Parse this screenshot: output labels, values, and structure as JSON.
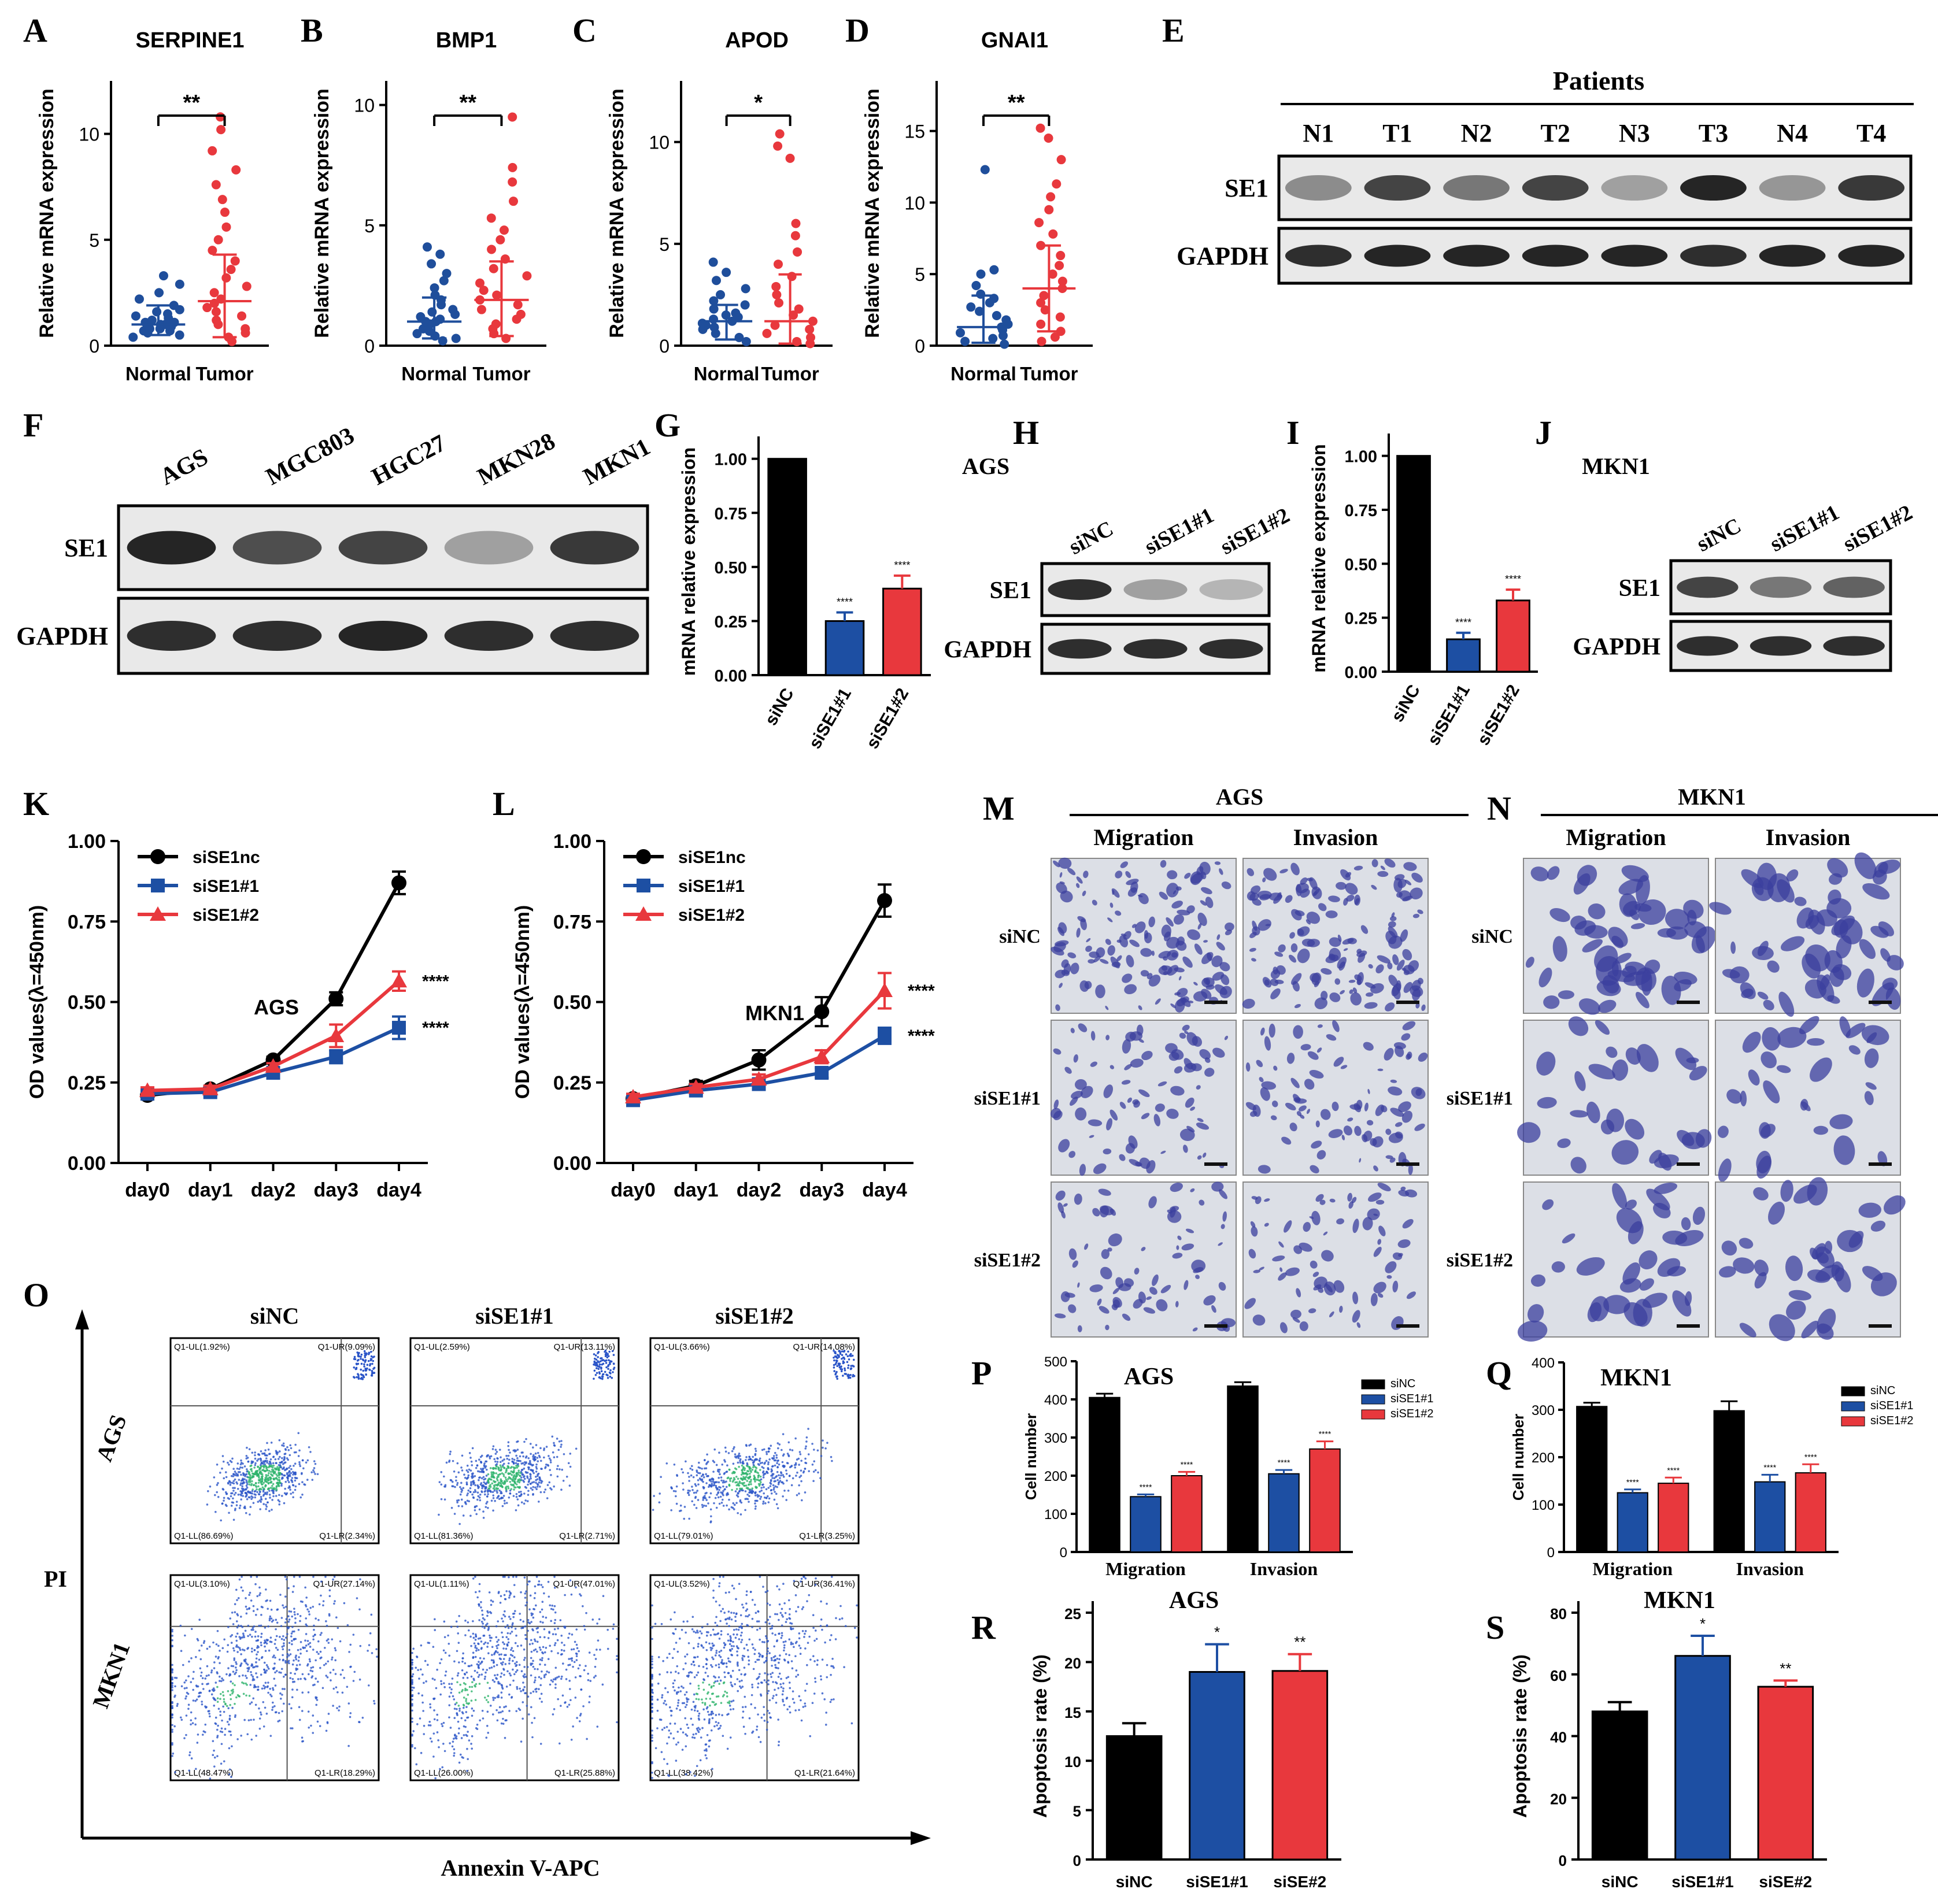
{
  "figure": {
    "panel_letters": [
      "A",
      "B",
      "C",
      "D",
      "E",
      "F",
      "G",
      "H",
      "I",
      "J",
      "K",
      "L",
      "M",
      "N",
      "O",
      "P",
      "Q",
      "R",
      "S"
    ]
  },
  "colors": {
    "normal": "#1f4e9b",
    "tumor": "#e8383d",
    "siNC": "#000000",
    "si1": "#1d4fa3",
    "si2": "#e8383d",
    "blot_bg": "#e9e9e9",
    "band": "#1a1a1a"
  },
  "chart_data": [
    {
      "id": "A",
      "type": "scatter",
      "title": "SERPINE1",
      "ylabel": "Relative mRNA expression",
      "categories": [
        "Normal",
        "Tumor"
      ],
      "ylim": [
        0,
        12.5
      ],
      "yticks": [
        0,
        5,
        10
      ],
      "sig": "**",
      "groups": [
        {
          "name": "Normal",
          "mean": 1.0,
          "sd_low": 0.5,
          "sd_high": 1.9,
          "points": [
            0.4,
            0.5,
            0.6,
            0.7,
            0.7,
            0.8,
            0.8,
            0.9,
            0.9,
            1.0,
            1.0,
            1.0,
            1.1,
            1.1,
            1.2,
            1.2,
            1.3,
            1.4,
            1.5,
            1.6,
            1.7,
            1.9,
            2.2,
            2.5,
            2.9,
            3.3
          ]
        },
        {
          "name": "Tumor",
          "mean": 2.1,
          "sd_low": 0.4,
          "sd_high": 4.3,
          "points": [
            0.2,
            0.4,
            0.6,
            0.8,
            1.0,
            1.2,
            1.4,
            1.6,
            1.8,
            2.0,
            2.2,
            2.5,
            2.8,
            3.2,
            3.6,
            4.0,
            4.5,
            5.0,
            5.6,
            6.3,
            6.9,
            7.6,
            8.3,
            9.2,
            10.2,
            10.8
          ]
        }
      ]
    },
    {
      "id": "B",
      "type": "scatter",
      "title": "BMP1",
      "ylabel": "Relative mRNA expression",
      "categories": [
        "Normal",
        "Tumor"
      ],
      "ylim": [
        0,
        11
      ],
      "yticks": [
        0,
        5,
        10
      ],
      "sig": "**",
      "groups": [
        {
          "name": "Normal",
          "mean": 1.0,
          "sd_low": 0.3,
          "sd_high": 2.0,
          "points": [
            0.2,
            0.3,
            0.4,
            0.5,
            0.6,
            0.7,
            0.8,
            0.9,
            1.0,
            1.0,
            1.1,
            1.2,
            1.3,
            1.4,
            1.5,
            1.7,
            1.9,
            2.1,
            2.4,
            2.7,
            3.0,
            3.4,
            3.8,
            4.1
          ]
        },
        {
          "name": "Tumor",
          "mean": 1.9,
          "sd_low": 0.4,
          "sd_high": 3.5,
          "points": [
            0.3,
            0.5,
            0.7,
            0.9,
            1.1,
            1.3,
            1.5,
            1.7,
            1.9,
            2.1,
            2.3,
            2.6,
            2.9,
            3.2,
            3.6,
            4.0,
            4.4,
            4.8,
            5.3,
            6.0,
            6.8,
            7.4,
            9.5
          ]
        }
      ]
    },
    {
      "id": "C",
      "type": "scatter",
      "title": "APOD",
      "ylabel": "Relative mRNA expression",
      "categories": [
        "Normal",
        "Tumor"
      ],
      "ylim": [
        0,
        13
      ],
      "yticks": [
        0,
        5,
        10
      ],
      "sig": "*",
      "groups": [
        {
          "name": "Normal",
          "mean": 1.2,
          "sd_low": 0.3,
          "sd_high": 2.0,
          "points": [
            0.2,
            0.4,
            0.6,
            0.8,
            0.9,
            1.0,
            1.1,
            1.2,
            1.3,
            1.4,
            1.5,
            1.6,
            1.8,
            2.0,
            2.2,
            2.5,
            2.8,
            3.2,
            3.6,
            4.1
          ]
        },
        {
          "name": "Tumor",
          "mean": 1.2,
          "sd_low": 0.1,
          "sd_high": 3.5,
          "points": [
            0.1,
            0.2,
            0.4,
            0.6,
            0.8,
            1.0,
            1.2,
            1.5,
            1.8,
            2.1,
            2.5,
            2.9,
            3.4,
            4.0,
            4.6,
            5.4,
            6.0,
            9.2,
            9.8,
            10.4
          ]
        }
      ]
    },
    {
      "id": "D",
      "type": "scatter",
      "title": "GNAI1",
      "ylabel": "Relative mRNA expression",
      "categories": [
        "Normal",
        "Tumor"
      ],
      "ylim": [
        0,
        18.5
      ],
      "yticks": [
        0,
        5,
        10,
        15
      ],
      "sig": "**",
      "groups": [
        {
          "name": "Normal",
          "mean": 1.3,
          "sd_low": 0.2,
          "sd_high": 3.5,
          "points": [
            0.1,
            0.3,
            0.5,
            0.7,
            0.9,
            1.1,
            1.3,
            1.5,
            1.8,
            2.1,
            2.4,
            2.7,
            3.0,
            3.3,
            3.6,
            4.2,
            5.0,
            5.3,
            12.3
          ]
        },
        {
          "name": "Tumor",
          "mean": 4.0,
          "sd_low": 1.0,
          "sd_high": 7.0,
          "points": [
            0.3,
            0.6,
            1.0,
            1.5,
            2.0,
            2.5,
            3.0,
            3.5,
            4.0,
            4.5,
            5.0,
            5.6,
            6.3,
            7.0,
            7.8,
            8.6,
            9.5,
            10.4,
            11.3,
            13.0,
            14.5,
            15.2
          ]
        }
      ]
    },
    {
      "id": "E",
      "type": "blot",
      "header": "Patients",
      "lanes": [
        "N1",
        "T1",
        "N2",
        "T2",
        "N3",
        "T3",
        "N4",
        "T4"
      ],
      "rows": [
        {
          "label": "SE1",
          "intensity": [
            0.45,
            0.8,
            0.55,
            0.8,
            0.35,
            0.95,
            0.4,
            0.85
          ]
        },
        {
          "label": "GAPDH",
          "intensity": [
            0.9,
            0.95,
            0.95,
            0.95,
            0.95,
            0.9,
            0.95,
            0.95
          ]
        }
      ]
    },
    {
      "id": "F",
      "type": "blot",
      "lanes": [
        "AGS",
        "MGC803",
        "HGC27",
        "MKN28",
        "MKN1"
      ],
      "rows": [
        {
          "label": "SE1",
          "intensity": [
            0.95,
            0.75,
            0.8,
            0.35,
            0.85
          ]
        },
        {
          "label": "GAPDH",
          "intensity": [
            0.9,
            0.9,
            0.95,
            0.9,
            0.9
          ]
        }
      ]
    },
    {
      "id": "G",
      "type": "bar",
      "ylabel": "mRNA relative expression",
      "categories": [
        "siNC",
        "siSE1#1",
        "siSE1#2"
      ],
      "values": [
        1.0,
        0.25,
        0.4
      ],
      "errors": [
        0,
        0.04,
        0.06
      ],
      "ylim": [
        0,
        1.05
      ],
      "yticks": [
        "0.00",
        "0.25",
        "0.50",
        "0.75",
        "1.00"
      ],
      "sig": [
        "",
        "****",
        "****"
      ]
    },
    {
      "id": "H",
      "type": "blot",
      "title": "AGS",
      "lanes": [
        "siNC",
        "siSE1#1",
        "siSE1#2"
      ],
      "rows": [
        {
          "label": "SE1",
          "intensity": [
            0.9,
            0.35,
            0.25
          ]
        },
        {
          "label": "GAPDH",
          "intensity": [
            0.9,
            0.9,
            0.9
          ]
        }
      ]
    },
    {
      "id": "I",
      "type": "bar",
      "ylabel": "mRNA relative expression",
      "categories": [
        "siNC",
        "siSE1#1",
        "siSE1#2"
      ],
      "values": [
        1.0,
        0.15,
        0.33
      ],
      "errors": [
        0,
        0.03,
        0.05
      ],
      "ylim": [
        0,
        1.05
      ],
      "yticks": [
        "0.00",
        "0.25",
        "0.50",
        "0.75",
        "1.00"
      ],
      "sig": [
        "",
        "****",
        "****"
      ]
    },
    {
      "id": "J",
      "type": "blot",
      "title": "MKN1",
      "lanes": [
        "siNC",
        "siSE1#1",
        "siSE1#2"
      ],
      "rows": [
        {
          "label": "SE1",
          "intensity": [
            0.8,
            0.55,
            0.65
          ]
        },
        {
          "label": "GAPDH",
          "intensity": [
            0.9,
            0.9,
            0.9
          ]
        }
      ]
    },
    {
      "id": "K",
      "type": "line",
      "ylabel": "OD values(λ=450nm)",
      "annotation": "AGS",
      "x": [
        "day0",
        "day1",
        "day2",
        "day3",
        "day4"
      ],
      "ylim": [
        0,
        1.0
      ],
      "yticks": [
        "0.00",
        "0.25",
        "0.50",
        "0.75",
        "1.00"
      ],
      "series": [
        {
          "name": "siSE1nc",
          "values": [
            0.21,
            0.23,
            0.32,
            0.51,
            0.87
          ],
          "errors": [
            0.01,
            0.01,
            0.01,
            0.02,
            0.035
          ],
          "sig": ""
        },
        {
          "name": "siSE1#1",
          "values": [
            0.215,
            0.22,
            0.28,
            0.33,
            0.42
          ],
          "errors": [
            0.01,
            0.01,
            0.01,
            0.02,
            0.035
          ],
          "sig": "****"
        },
        {
          "name": "siSE1#2",
          "values": [
            0.225,
            0.23,
            0.3,
            0.395,
            0.565
          ],
          "errors": [
            0.01,
            0.01,
            0.01,
            0.035,
            0.03
          ],
          "sig": "****"
        }
      ]
    },
    {
      "id": "L",
      "type": "line",
      "ylabel": "OD values(λ=450nm)",
      "annotation": "MKN1",
      "x": [
        "day0",
        "day1",
        "day2",
        "day3",
        "day4"
      ],
      "ylim": [
        0,
        1.0
      ],
      "yticks": [
        "0.00",
        "0.25",
        "0.50",
        "0.75",
        "1.00"
      ],
      "series": [
        {
          "name": "siSE1nc",
          "values": [
            0.2,
            0.24,
            0.32,
            0.47,
            0.815
          ],
          "errors": [
            0.01,
            0.015,
            0.03,
            0.045,
            0.05
          ],
          "sig": ""
        },
        {
          "name": "siSE1#1",
          "values": [
            0.195,
            0.225,
            0.245,
            0.28,
            0.395
          ],
          "errors": [
            0.01,
            0.01,
            0.01,
            0.015,
            0.025
          ],
          "sig": "****"
        },
        {
          "name": "siSE1#2",
          "values": [
            0.205,
            0.235,
            0.26,
            0.33,
            0.535
          ],
          "errors": [
            0.01,
            0.01,
            0.015,
            0.02,
            0.055
          ],
          "sig": "****"
        }
      ]
    },
    {
      "id": "M",
      "type": "image-grid",
      "title": "AGS",
      "cols": [
        "Migration",
        "Invasion"
      ],
      "rows": [
        "siNC",
        "siSE1#1",
        "siSE1#2"
      ],
      "density": [
        [
          1.0,
          1.0
        ],
        [
          0.55,
          0.6
        ],
        [
          0.5,
          0.5
        ]
      ]
    },
    {
      "id": "N",
      "type": "image-grid",
      "title": "MKN1",
      "cols": [
        "Migration",
        "Invasion"
      ],
      "rows": [
        "siNC",
        "siSE1#1",
        "siSE1#2"
      ],
      "density": [
        [
          0.75,
          0.8
        ],
        [
          0.4,
          0.45
        ],
        [
          0.45,
          0.5
        ]
      ]
    },
    {
      "id": "O",
      "type": "flow",
      "cols": [
        "siNC",
        "siSE1#1",
        "siSE1#2"
      ],
      "rows": [
        "AGS",
        "MKN1"
      ],
      "yaxis": "PI",
      "xaxis": "Annexin V-APC",
      "quadrants": [
        [
          [
            "Q1-UL(1.92%)",
            "Q1-UR(9.09%)",
            "Q1-LL(86.69%)",
            "Q1-LR(2.34%)"
          ],
          [
            "Q1-UL(2.59%)",
            "Q1-UR(13.11%)",
            "Q1-LL(81.36%)",
            "Q1-LR(2.71%)"
          ],
          [
            "Q1-UL(3.66%)",
            "Q1-UR(14.08%)",
            "Q1-LL(79.01%)",
            "Q1-LR(3.25%)"
          ]
        ],
        [
          [
            "Q1-UL(3.10%)",
            "Q1-UR(27.14%)",
            "Q1-LL(48.47%)",
            "Q1-LR(18.29%)"
          ],
          [
            "Q1-UL(1.11%)",
            "Q1-UR(47.01%)",
            "Q1-LL(26.00%)",
            "Q1-LR(25.88%)"
          ],
          [
            "Q1-UL(3.52%)",
            "Q1-UR(36.41%)",
            "Q1-LL(38.42%)",
            "Q1-LR(21.64%)"
          ]
        ]
      ]
    },
    {
      "id": "P",
      "type": "bar",
      "title": "AGS",
      "ylabel": "Cell number",
      "groups": [
        "Migration",
        "Invasion"
      ],
      "series": [
        {
          "name": "siNC",
          "values": [
            405,
            435
          ],
          "errors": [
            10,
            10
          ]
        },
        {
          "name": "siSE1#1",
          "values": [
            145,
            205
          ],
          "errors": [
            6,
            10
          ]
        },
        {
          "name": "siSE1#2",
          "values": [
            200,
            270
          ],
          "errors": [
            10,
            20
          ]
        }
      ],
      "ylim": [
        0,
        500
      ],
      "yticks": [
        "0",
        "100",
        "200",
        "300",
        "400",
        "500"
      ],
      "sig": "****"
    },
    {
      "id": "Q",
      "type": "bar",
      "title": "MKN1",
      "ylabel": "Cell number",
      "groups": [
        "Migration",
        "Invasion"
      ],
      "series": [
        {
          "name": "siNC",
          "values": [
            307,
            298
          ],
          "errors": [
            8,
            20
          ]
        },
        {
          "name": "siSE1#1",
          "values": [
            125,
            148
          ],
          "errors": [
            7,
            15
          ]
        },
        {
          "name": "siSE1#2",
          "values": [
            145,
            167
          ],
          "errors": [
            12,
            18
          ]
        }
      ],
      "ylim": [
        0,
        400
      ],
      "yticks": [
        "0",
        "100",
        "200",
        "300",
        "400"
      ],
      "sig": "****"
    },
    {
      "id": "R",
      "type": "bar",
      "title": "AGS",
      "ylabel": "Apoptosis rate (%)",
      "categories": [
        "siNC",
        "siSE1#1",
        "siSE#2"
      ],
      "values": [
        12.5,
        19.0,
        19.1
      ],
      "errors": [
        1.3,
        2.8,
        1.7
      ],
      "ylim": [
        0,
        25
      ],
      "yticks": [
        "0",
        "5",
        "10",
        "15",
        "20",
        "25"
      ],
      "sig": [
        "",
        "*",
        "**"
      ]
    },
    {
      "id": "S",
      "type": "bar",
      "title": "MKN1",
      "ylabel": "Apoptosis rate (%)",
      "categories": [
        "siNC",
        "siSE1#1",
        "siSE#2"
      ],
      "values": [
        48,
        66,
        56
      ],
      "errors": [
        3,
        6.5,
        2
      ],
      "ylim": [
        0,
        80
      ],
      "yticks": [
        "0",
        "20",
        "40",
        "60",
        "80"
      ],
      "sig": [
        "",
        "*",
        "**"
      ]
    }
  ]
}
